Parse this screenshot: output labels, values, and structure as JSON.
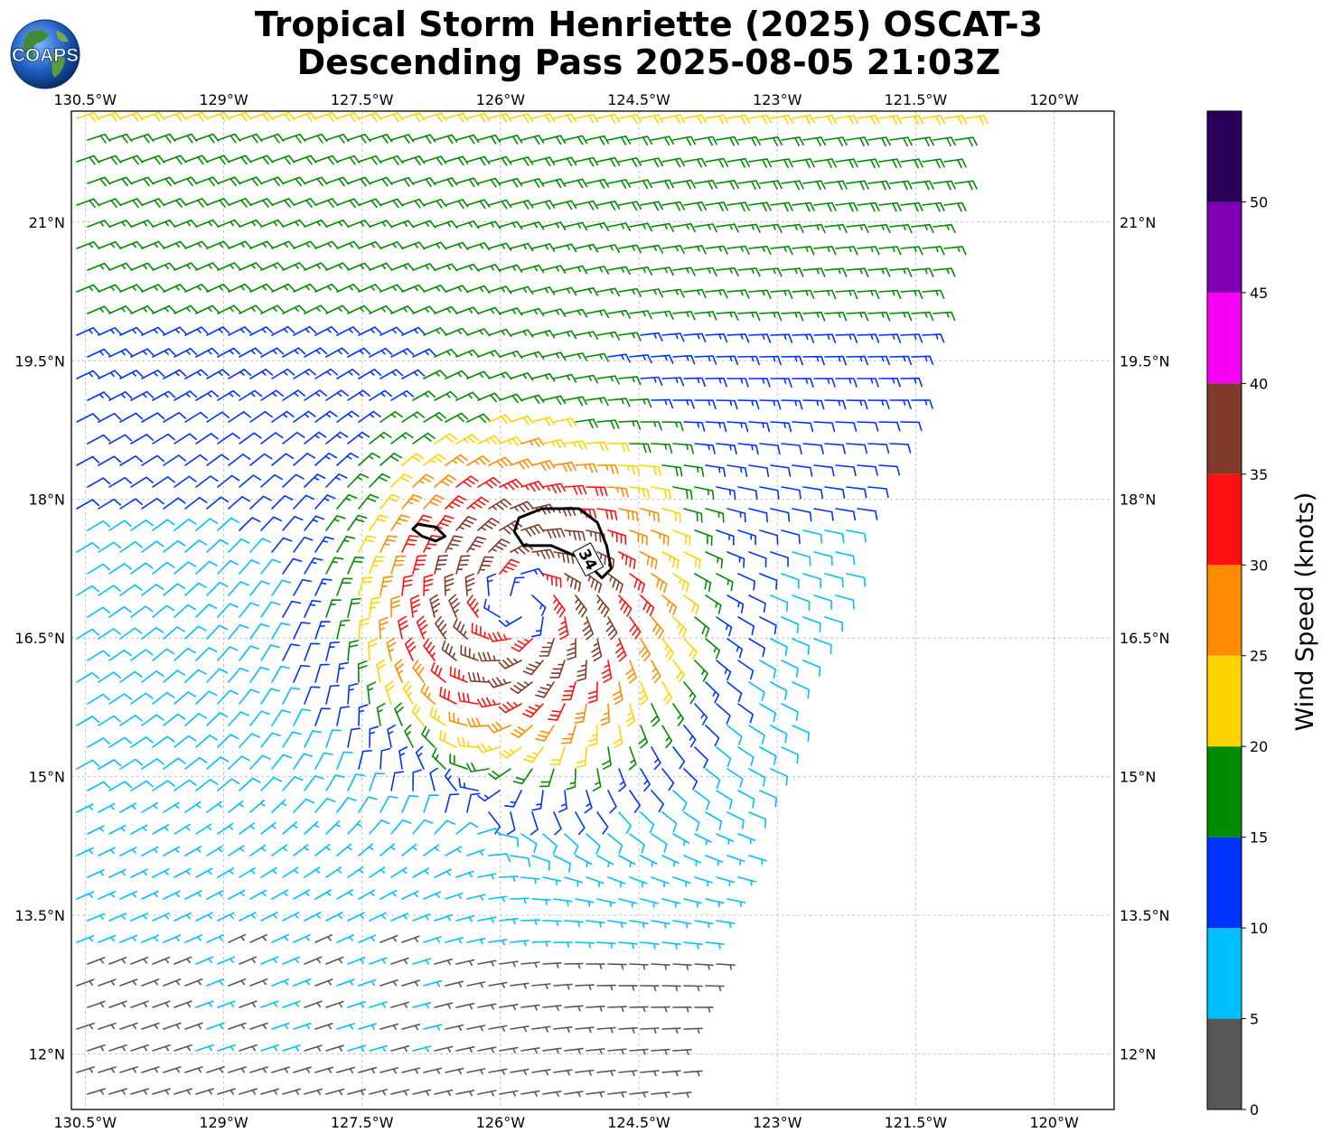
{
  "title": {
    "line1": "Tropical Storm Henriette (2025) OSCAT-3",
    "line2": "Descending Pass 2025-08-05 21:03Z"
  },
  "logo": {
    "text": "COAPS",
    "icon": "globe-logo-icon"
  },
  "map": {
    "lon_range": [
      -130.65,
      -119.35
    ],
    "lat_range": [
      11.4,
      22.2
    ],
    "lon_ticks": [
      {
        "value": -130.5,
        "label": "130.5°W"
      },
      {
        "value": -129.0,
        "label": "129°W"
      },
      {
        "value": -127.5,
        "label": "127.5°W"
      },
      {
        "value": -126.0,
        "label": "126°W"
      },
      {
        "value": -124.5,
        "label": "124.5°W"
      },
      {
        "value": -123.0,
        "label": "123°W"
      },
      {
        "value": -121.5,
        "label": "121.5°W"
      },
      {
        "value": -120.0,
        "label": "120°W"
      }
    ],
    "lat_ticks": [
      {
        "value": 21.0,
        "label": "21°N"
      },
      {
        "value": 19.5,
        "label": "19.5°N"
      },
      {
        "value": 18.0,
        "label": "18°N"
      },
      {
        "value": 16.5,
        "label": "16.5°N"
      },
      {
        "value": 15.0,
        "label": "15°N"
      },
      {
        "value": 13.5,
        "label": "13.5°N"
      },
      {
        "value": 12.0,
        "label": "12°N"
      }
    ],
    "storm_center": {
      "lon": -125.8,
      "lat": 16.9
    },
    "contour_label": "34",
    "swath_polygon": [
      [
        -130.65,
        22.2
      ],
      [
        -120.9,
        22.2
      ],
      [
        -121.3,
        19.7
      ],
      [
        -123.1,
        14.8
      ],
      [
        -124.1,
        11.4
      ],
      [
        -130.65,
        11.4
      ]
    ],
    "contour_34kt_main": [
      [
        -125.8,
        17.8
      ],
      [
        -125.55,
        17.9
      ],
      [
        -125.15,
        17.9
      ],
      [
        -124.95,
        17.75
      ],
      [
        -124.85,
        17.5
      ],
      [
        -124.8,
        17.25
      ],
      [
        -124.9,
        17.15
      ],
      [
        -125.1,
        17.35
      ],
      [
        -125.45,
        17.5
      ],
      [
        -125.75,
        17.5
      ],
      [
        -125.85,
        17.65
      ]
    ],
    "contour_34kt_small": [
      [
        -126.9,
        17.73
      ],
      [
        -126.7,
        17.7
      ],
      [
        -126.6,
        17.6
      ],
      [
        -126.7,
        17.55
      ],
      [
        -126.85,
        17.6
      ],
      [
        -126.95,
        17.68
      ]
    ]
  },
  "colorbar": {
    "label": "Wind Speed (knots)",
    "ticks": [
      "0",
      "5",
      "10",
      "15",
      "20",
      "25",
      "30",
      "35",
      "40",
      "45",
      "50"
    ],
    "bins": [
      {
        "min": 0,
        "max": 5,
        "color": "#575757"
      },
      {
        "min": 5,
        "max": 10,
        "color": "#00bfff"
      },
      {
        "min": 10,
        "max": 15,
        "color": "#0033ff"
      },
      {
        "min": 15,
        "max": 20,
        "color": "#008c00"
      },
      {
        "min": 20,
        "max": 25,
        "color": "#ffd400"
      },
      {
        "min": 25,
        "max": 30,
        "color": "#ff8c00"
      },
      {
        "min": 30,
        "max": 35,
        "color": "#ff0f0f"
      },
      {
        "min": 35,
        "max": 40,
        "color": "#803a28"
      },
      {
        "min": 40,
        "max": 45,
        "color": "#f500f5"
      },
      {
        "min": 45,
        "max": 50,
        "color": "#7f00b2"
      },
      {
        "min": 50,
        "max": 55,
        "color": "#28005a"
      }
    ]
  }
}
